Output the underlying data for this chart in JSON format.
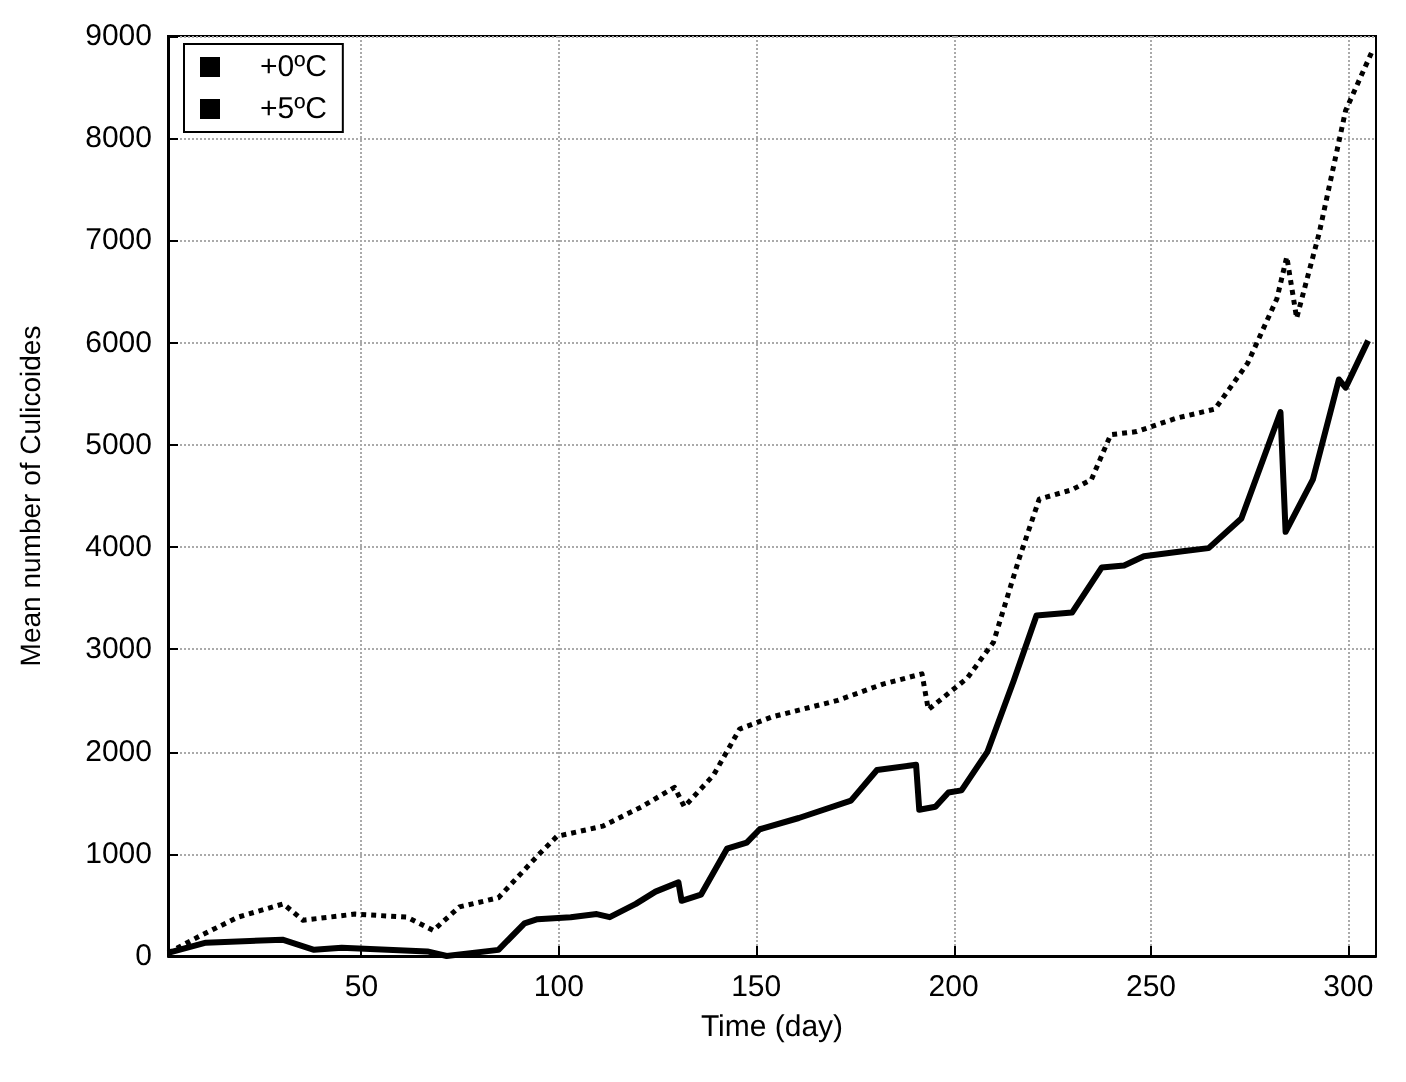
{
  "chart_data": {
    "type": "line",
    "xlabel": "Time (day)",
    "ylabel": "Mean number of Culicoides",
    "xlim": [
      1,
      307
    ],
    "xticks": [
      50,
      100,
      150,
      200,
      250,
      300
    ],
    "ylim": [
      0,
      9000
    ],
    "yticks": [
      0,
      1000,
      2000,
      3000,
      4000,
      5000,
      6000,
      7000,
      8000,
      9000
    ],
    "grid": true,
    "legend": "top left",
    "marker": "none",
    "series": [
      {
        "name": "+0ºC",
        "color": "#000000",
        "line_style": "solid",
        "x": [
          1,
          10.6,
          30,
          38,
          45,
          66.7,
          71.6,
          84.7,
          91.3,
          94.6,
          103,
          109.6,
          112.9,
          119.5,
          124.5,
          130.3,
          131.1,
          136,
          142.6,
          147.6,
          150.9,
          160.8,
          174,
          180.6,
          190.5,
          191.3,
          195.4,
          198.7,
          202,
          208.6,
          215.2,
          221,
          230,
          237.5,
          243.2,
          248.2,
          258,
          264.6,
          272.9,
          282.8,
          284.1,
          291,
          297.6,
          299.3,
          305
        ],
        "values": [
          30,
          130,
          160,
          60,
          80,
          45,
          0,
          60,
          320,
          360,
          380,
          410,
          380,
          510,
          630,
          720,
          540,
          600,
          1050,
          1110,
          1240,
          1350,
          1520,
          1820,
          1870,
          1430,
          1460,
          1600,
          1620,
          2000,
          2690,
          3330,
          3360,
          3800,
          3820,
          3910,
          3960,
          3990,
          4280,
          5320,
          4150,
          4660,
          5640,
          5560,
          6020
        ]
      },
      {
        "name": "+5ºC",
        "color": "#000000",
        "line_style": "dotted",
        "x": [
          1,
          8.8,
          18.7,
          30.2,
          35.2,
          48.4,
          61.6,
          68.2,
          74.8,
          84.7,
          94.6,
          99.5,
          111.1,
          121,
          129.3,
          131.8,
          139.2,
          145.8,
          154.1,
          170.6,
          182.1,
          192,
          193.6,
          203.5,
          210.1,
          216.7,
          221.7,
          229.9,
          234.9,
          239.8,
          246.4,
          256.3,
          266.2,
          274.5,
          281.9,
          284.4,
          286.9,
          292.6,
          299.3,
          305.9
        ],
        "values": [
          30,
          190,
          380,
          510,
          350,
          410,
          380,
          250,
          480,
          570,
          980,
          1170,
          1270,
          1460,
          1650,
          1460,
          1770,
          2220,
          2340,
          2500,
          2660,
          2760,
          2410,
          2720,
          3070,
          3900,
          4470,
          4560,
          4660,
          5100,
          5130,
          5260,
          5350,
          5800,
          6430,
          6840,
          6240,
          7070,
          8270,
          8840
        ]
      }
    ]
  }
}
